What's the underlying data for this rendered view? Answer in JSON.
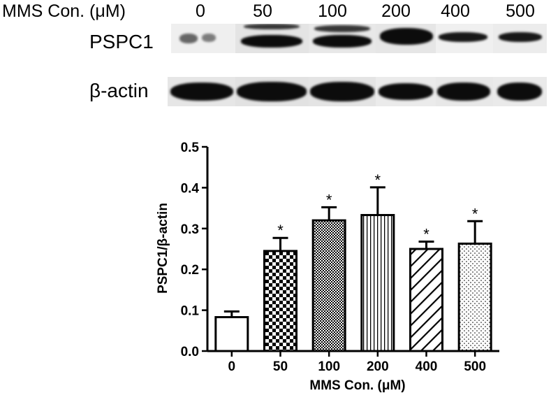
{
  "blot": {
    "header_label": "MMS Con. (μM)",
    "lanes": [
      "0",
      "50",
      "100",
      "200",
      "400",
      "500"
    ],
    "rows": [
      {
        "label": "PSPC1",
        "band_intensity": [
          "faint",
          "strong",
          "strong",
          "strong",
          "medium",
          "medium"
        ]
      },
      {
        "label": "β-actin",
        "band_intensity": [
          "strong",
          "strong",
          "strong",
          "strong",
          "strong",
          "strong"
        ]
      }
    ]
  },
  "chart_data": {
    "type": "bar",
    "categories": [
      "0",
      "50",
      "100",
      "200",
      "400",
      "500"
    ],
    "values": [
      0.083,
      0.245,
      0.32,
      0.333,
      0.25,
      0.263
    ],
    "errors": [
      0.014,
      0.032,
      0.032,
      0.068,
      0.018,
      0.055
    ],
    "significance": [
      "",
      "*",
      "*",
      "*",
      "*",
      "*"
    ],
    "fill_patterns": [
      "white",
      "checkerboard",
      "fine-checker",
      "vertical-lines",
      "diagonal-lines",
      "dots"
    ],
    "xlabel": "MMS Con. (μM)",
    "ylabel": "PSPC1/β-actin",
    "ylim": [
      0,
      0.5
    ],
    "yticks": [
      "0.0",
      "0.1",
      "0.2",
      "0.3",
      "0.4",
      "0.5"
    ],
    "grid": false
  }
}
